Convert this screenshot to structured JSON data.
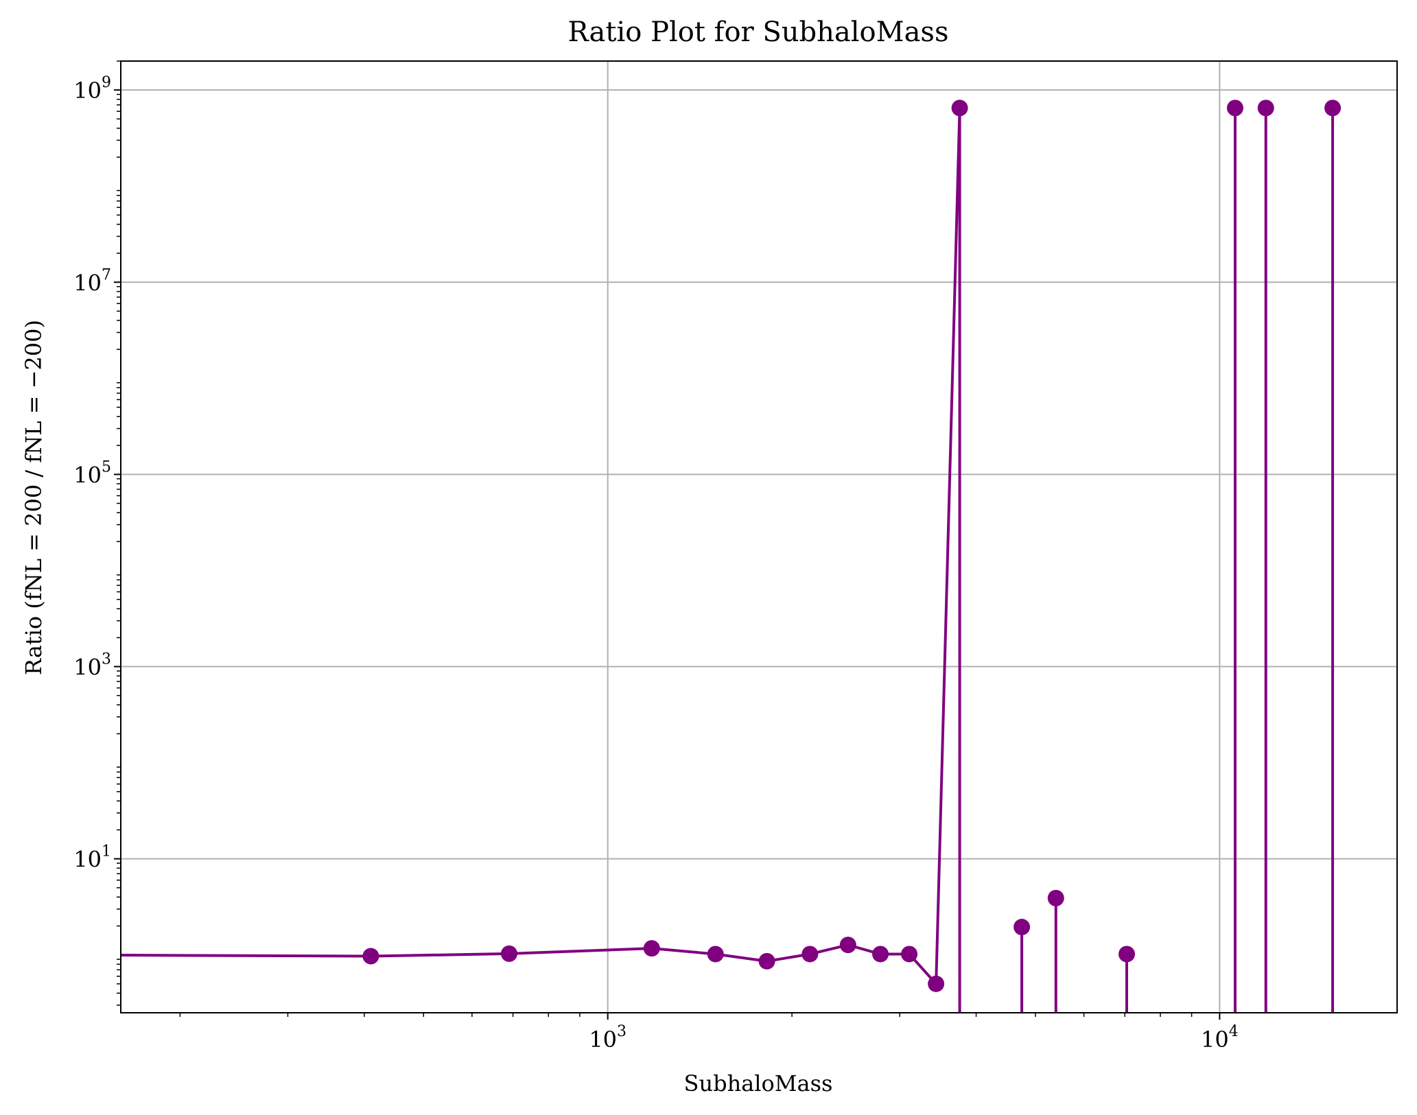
{
  "chart_data": {
    "type": "line",
    "title": "Ratio Plot for SubhaloMass",
    "xlabel": "SubhaloMass",
    "ylabel": "Ratio (fNL = 200 / fNL = −200)",
    "x_scale": "log",
    "y_scale": "log",
    "xlim": [
      160,
      19500
    ],
    "ylim": [
      0.25,
      2000000000
    ],
    "x_ticks": [
      {
        "value": 1000,
        "base": "10",
        "exp": "3"
      },
      {
        "value": 10000,
        "base": "10",
        "exp": "4"
      }
    ],
    "y_ticks": [
      {
        "value": 10,
        "base": "10",
        "exp": "1"
      },
      {
        "value": 1000,
        "base": "10",
        "exp": "3"
      },
      {
        "value": 100000,
        "base": "10",
        "exp": "5"
      },
      {
        "value": 10000000,
        "base": "10",
        "exp": "7"
      },
      {
        "value": 1000000000,
        "base": "10",
        "exp": "9"
      }
    ],
    "grid": true,
    "color": "#800080",
    "series": [
      {
        "x": [
          130,
          410,
          690,
          1180,
          1500,
          1820,
          2140,
          2470,
          2790,
          3110,
          3440,
          3760,
          4750,
          5400,
          7050,
          10600,
          11900,
          15300
        ],
        "y": [
          1.0,
          0.97,
          1.03,
          1.17,
          1.02,
          0.86,
          1.02,
          1.27,
          1.02,
          1.02,
          0.5,
          650000000,
          1.95,
          3.9,
          1.02,
          650000000,
          650000000,
          650000000
        ],
        "drop_below_axis": [
          false,
          false,
          false,
          false,
          false,
          false,
          false,
          false,
          false,
          false,
          false,
          true,
          true,
          true,
          true,
          true,
          true,
          true
        ]
      }
    ]
  }
}
